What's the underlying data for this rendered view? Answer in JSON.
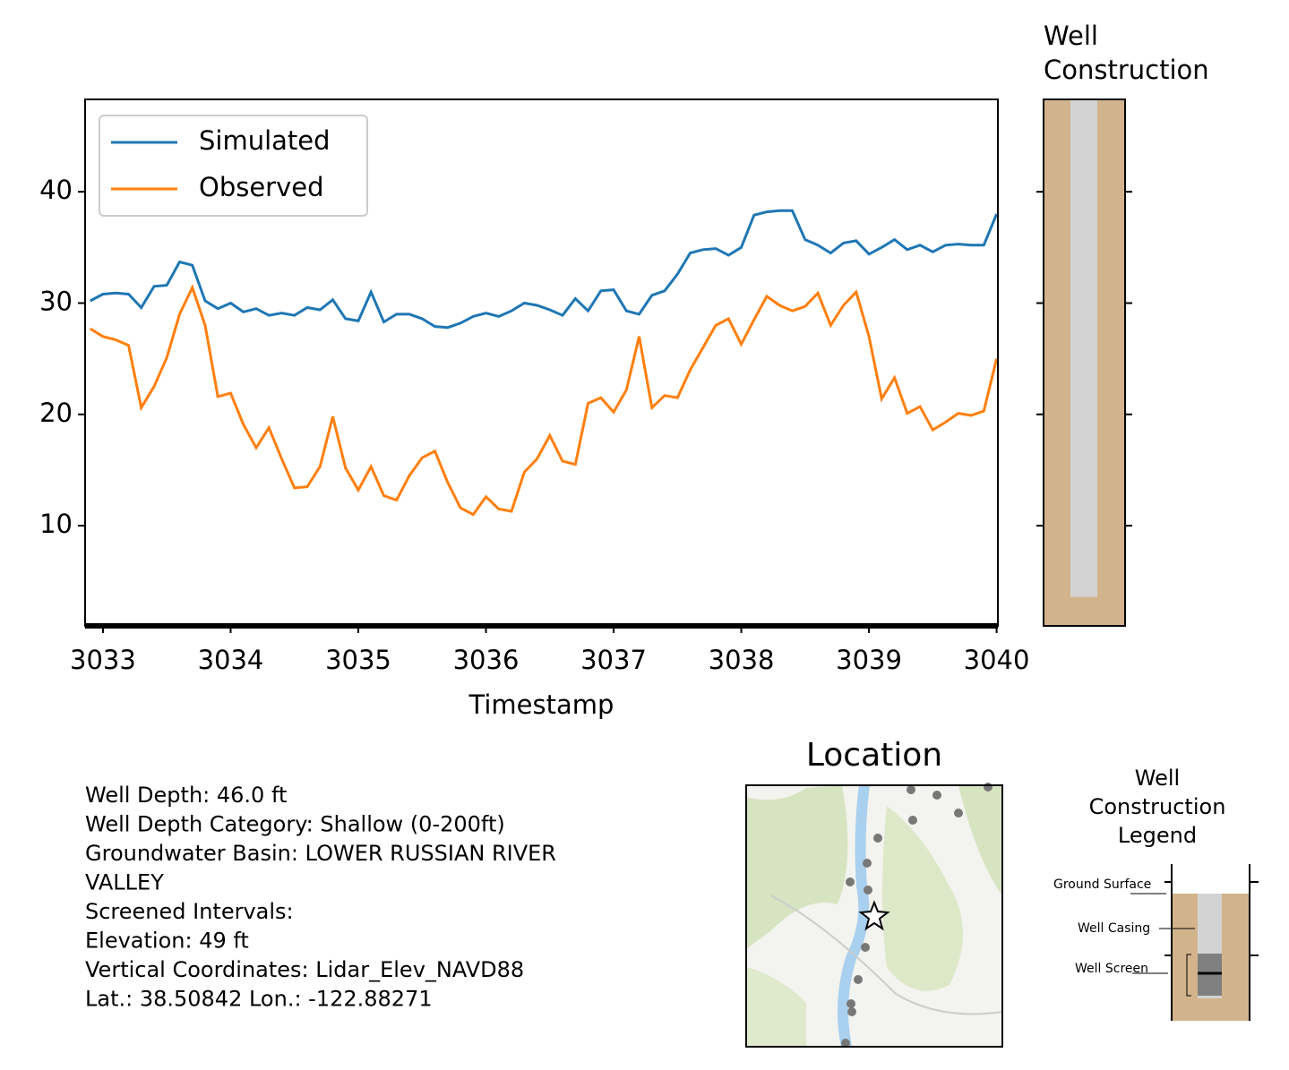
{
  "chart_data": [
    {
      "type": "line",
      "xlabel": "Timestamp",
      "legend": "upper left",
      "xlim": [
        3032.86,
        3040.01
      ],
      "xticks": [
        3033,
        3034,
        3035,
        3036,
        3037,
        3038,
        3039,
        3040
      ],
      "ylim": [
        1.0,
        48.3
      ],
      "yticks": [
        10,
        20,
        30,
        40
      ],
      "x": [
        3032.9,
        3033.0,
        3033.1,
        3033.2,
        3033.3,
        3033.4,
        3033.5,
        3033.6,
        3033.7,
        3033.8,
        3033.9,
        3034.0,
        3034.1,
        3034.2,
        3034.3,
        3034.4,
        3034.5,
        3034.6,
        3034.7,
        3034.8,
        3034.9,
        3035.0,
        3035.1,
        3035.2,
        3035.3,
        3035.4,
        3035.5,
        3035.6,
        3035.7,
        3035.8,
        3035.9,
        3036.0,
        3036.1,
        3036.2,
        3036.3,
        3036.4,
        3036.5,
        3036.6,
        3036.7,
        3036.8,
        3036.9,
        3037.0,
        3037.1,
        3037.2,
        3037.3,
        3037.4,
        3037.5,
        3037.6,
        3037.7,
        3037.8,
        3037.9,
        3038.0,
        3038.1,
        3038.2,
        3038.3,
        3038.4,
        3038.5,
        3038.6,
        3038.7,
        3038.8,
        3038.9,
        3039.0,
        3039.1,
        3039.2,
        3039.3,
        3039.4,
        3039.5,
        3039.6,
        3039.7,
        3039.8,
        3039.9,
        3040.0
      ],
      "series": [
        {
          "name": "Simulated",
          "color": "#1f77b4",
          "values": [
            30.2,
            30.8,
            30.9,
            30.8,
            29.6,
            31.5,
            31.6,
            33.7,
            33.4,
            30.2,
            29.5,
            30.0,
            29.2,
            29.5,
            28.9,
            29.1,
            28.9,
            29.6,
            29.4,
            30.3,
            28.6,
            28.4,
            31.0,
            28.3,
            29.0,
            29.0,
            28.6,
            27.9,
            27.8,
            28.2,
            28.8,
            29.1,
            28.8,
            29.3,
            30.0,
            29.8,
            29.4,
            28.9,
            30.4,
            29.3,
            31.1,
            31.2,
            29.3,
            29.0,
            30.7,
            31.1,
            32.6,
            34.5,
            34.8,
            34.9,
            34.3,
            35.0,
            37.9,
            38.2,
            38.3,
            38.3,
            35.7,
            35.2,
            34.5,
            35.4,
            35.6,
            34.4,
            35.0,
            35.7,
            34.8,
            35.2,
            34.6,
            35.2,
            35.3,
            35.2,
            35.2,
            38.0
          ]
        },
        {
          "name": "Observed",
          "color": "#ff7f0e",
          "values": [
            27.7,
            27.0,
            26.7,
            26.2,
            20.6,
            22.5,
            25.1,
            29.0,
            31.4,
            28.0,
            21.6,
            21.9,
            19.1,
            17.0,
            18.8,
            16.0,
            13.4,
            13.5,
            15.3,
            19.8,
            15.2,
            13.2,
            15.3,
            12.7,
            12.3,
            14.5,
            16.1,
            16.7,
            13.9,
            11.6,
            11.0,
            12.6,
            11.5,
            11.3,
            14.8,
            16.0,
            18.1,
            15.8,
            15.5,
            21.0,
            21.5,
            20.2,
            22.2,
            27.0,
            20.6,
            21.7,
            21.5,
            24.0,
            26.0,
            28.0,
            28.6,
            26.3,
            28.5,
            30.6,
            29.8,
            29.3,
            29.7,
            30.9,
            28.0,
            29.8,
            31.0,
            27.0,
            21.4,
            23.3,
            20.1,
            20.7,
            18.6,
            19.3,
            20.1,
            19.9,
            20.3,
            25.0
          ]
        }
      ]
    },
    {
      "type": "well",
      "title_lines": [
        "Well",
        "Construction"
      ],
      "ylim": [
        1.0,
        48.3
      ],
      "yticks": [
        10,
        20,
        30,
        40
      ],
      "casing_bottom": 3.6,
      "casing_color": "#d3d3d3",
      "fill_color": "#d2b48c"
    }
  ],
  "info_lines": [
    "Well Depth: 46.0 ft",
    "Well Depth Category: Shallow (0-200ft)",
    "Groundwater Basin: LOWER RUSSIAN RIVER",
    "VALLEY",
    "Screened Intervals:",
    "Elevation: 49 ft",
    "Vertical Coordinates: Lidar_Elev_NAVD88",
    "Lat.: 38.50842 Lon.: -122.88271"
  ],
  "map": {
    "title": "Location"
  },
  "well_legend": {
    "title_lines": [
      "Well",
      "Construction",
      "Legend"
    ],
    "labels": [
      "Ground Surface",
      "Well Casing",
      "Well Screen"
    ]
  }
}
